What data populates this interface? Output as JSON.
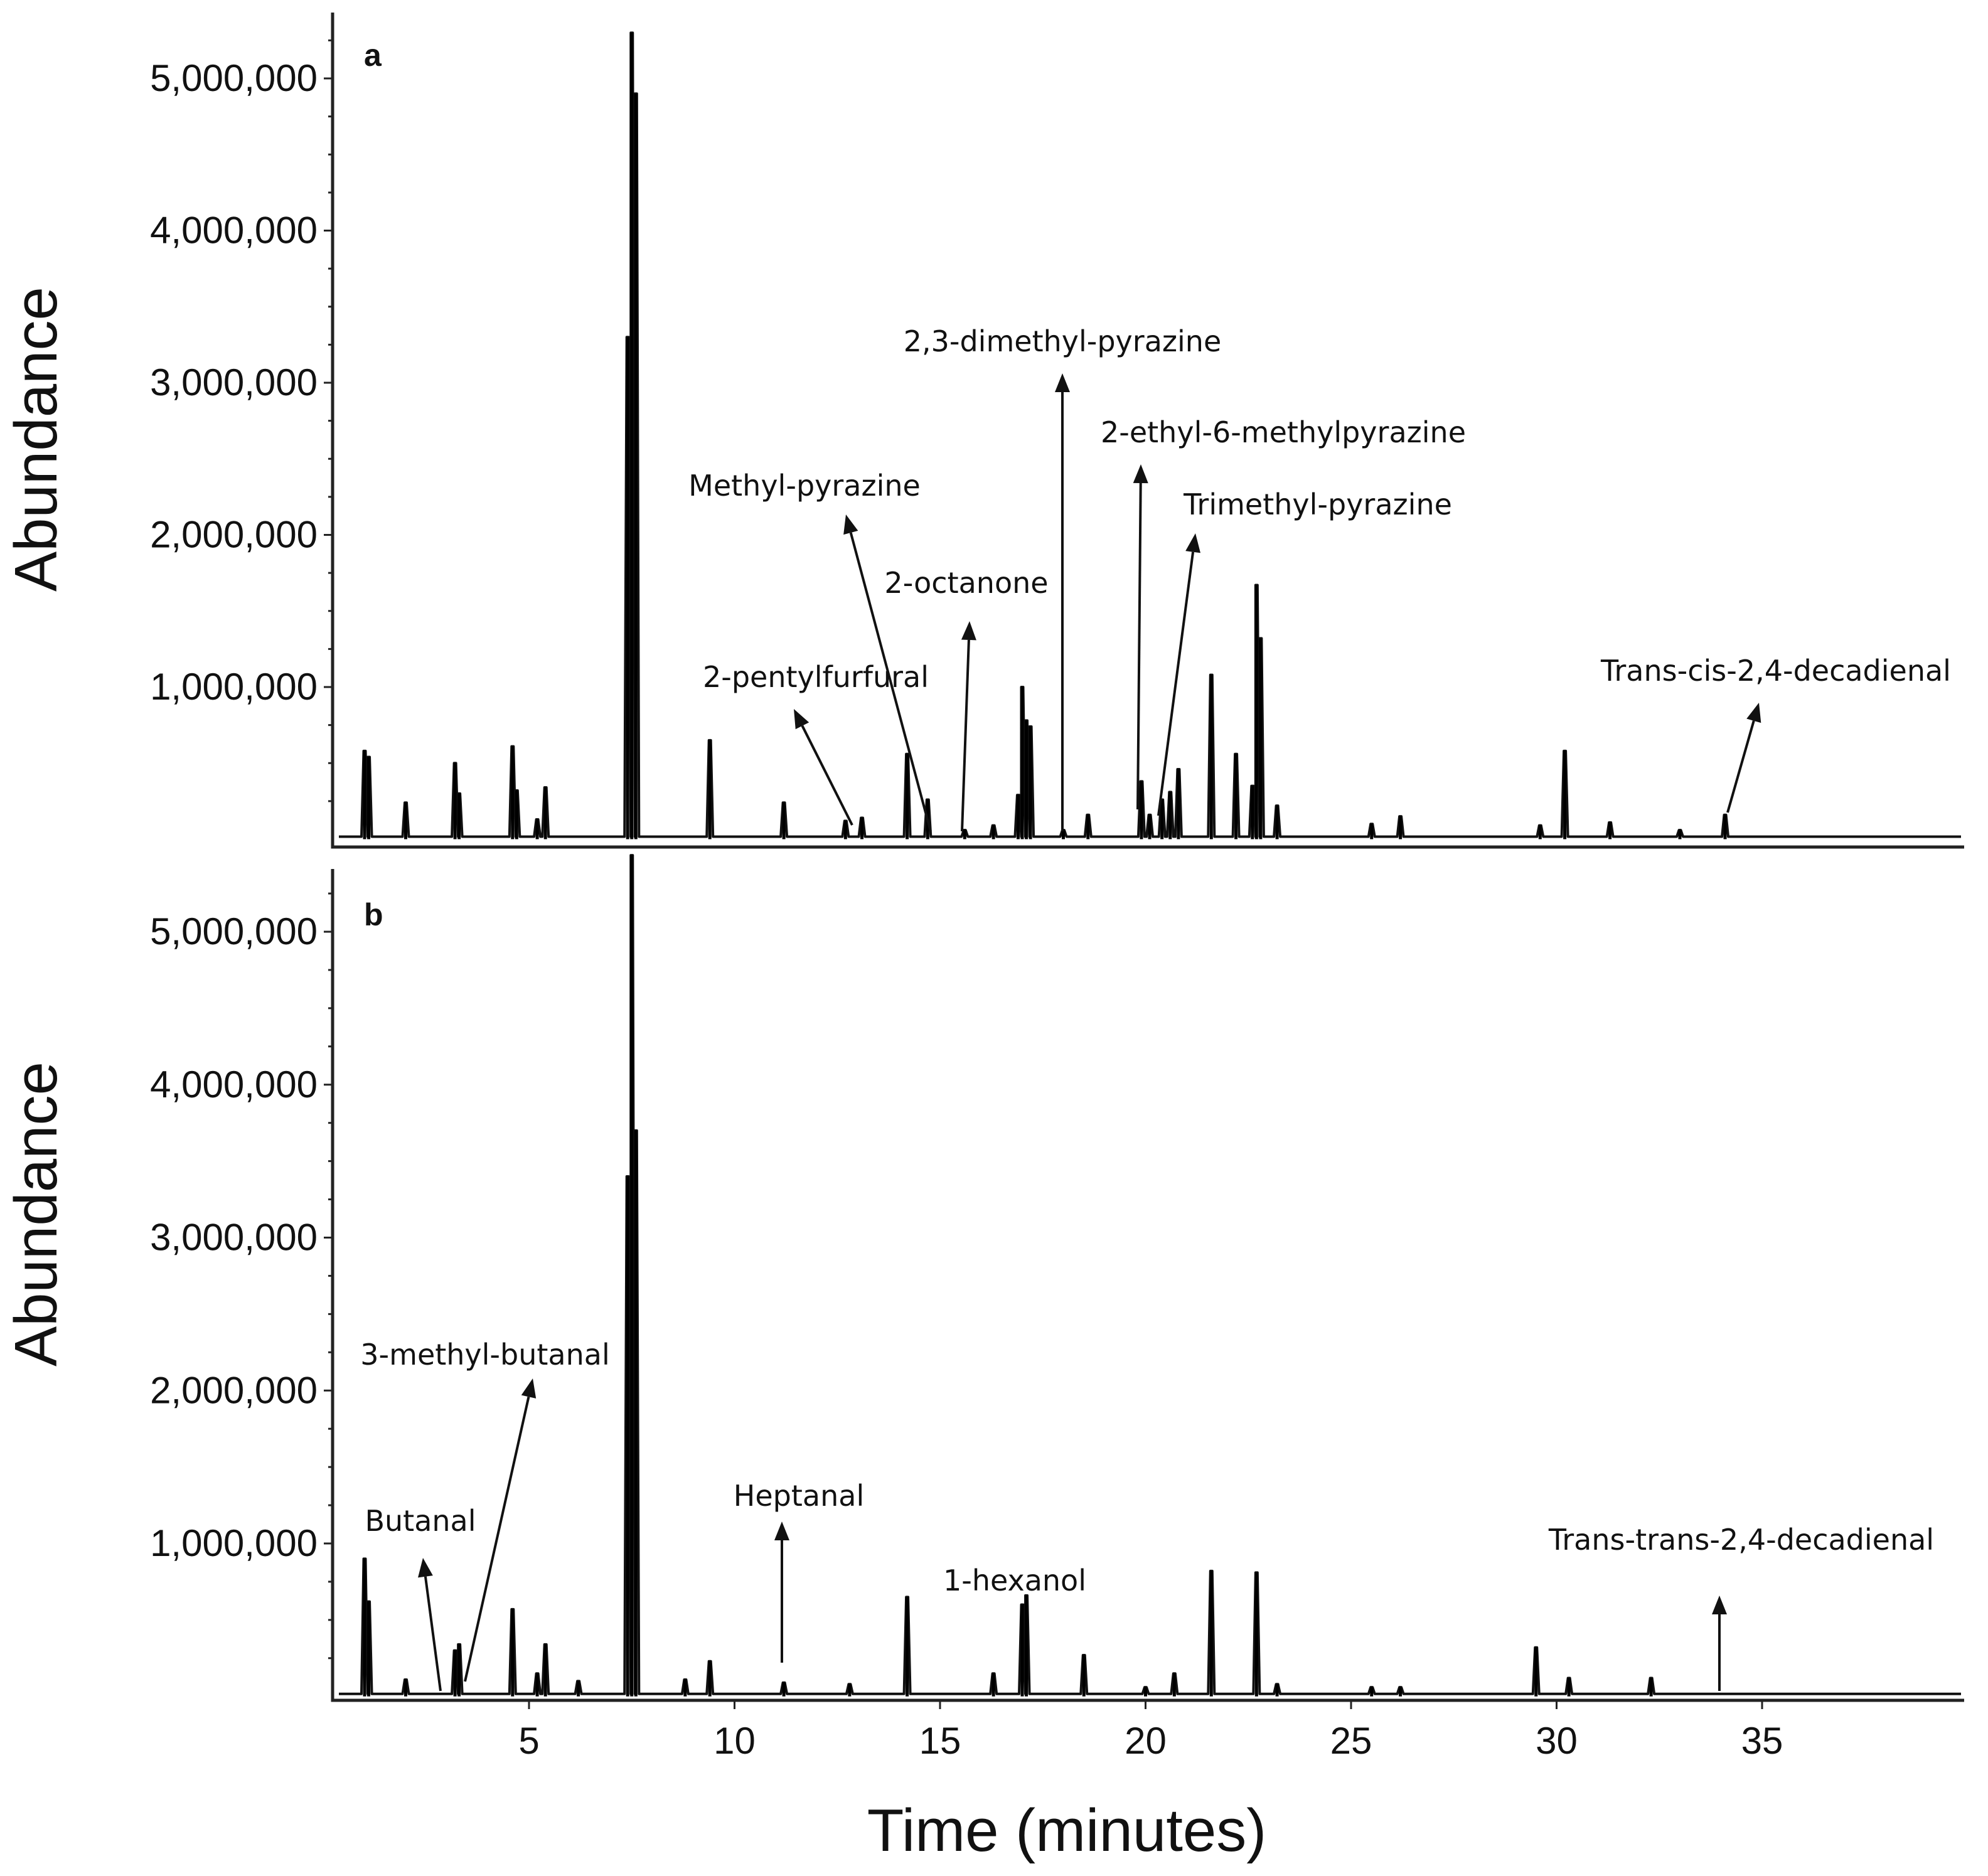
{
  "chart_data": [
    {
      "type": "line",
      "panel": "a",
      "ylabel": "Abundance",
      "xlabel": "",
      "xlim": [
        0,
        40
      ],
      "ylim": [
        0,
        5400000
      ],
      "ytick_labels": [
        "1,000,000",
        "2,000,000",
        "3,000,000",
        "4,000,000",
        "5,000,000"
      ],
      "ytick_values": [
        1000000,
        2000000,
        3000000,
        4000000,
        5000000
      ],
      "peaks": [
        [
          1.0,
          580000
        ],
        [
          1.1,
          540000
        ],
        [
          2.0,
          240000
        ],
        [
          3.2,
          500000
        ],
        [
          3.3,
          300000
        ],
        [
          4.6,
          610000
        ],
        [
          4.7,
          320000
        ],
        [
          5.2,
          130000
        ],
        [
          5.4,
          340000
        ],
        [
          7.4,
          3300000
        ],
        [
          7.5,
          5300000
        ],
        [
          7.6,
          4900000
        ],
        [
          9.4,
          650000
        ],
        [
          11.2,
          240000
        ],
        [
          12.7,
          120000
        ],
        [
          13.1,
          140000
        ],
        [
          14.2,
          560000
        ],
        [
          14.7,
          260000
        ],
        [
          15.6,
          60000
        ],
        [
          16.3,
          90000
        ],
        [
          16.9,
          290000
        ],
        [
          17.0,
          1000000
        ],
        [
          17.1,
          780000
        ],
        [
          17.2,
          740000
        ],
        [
          18.0,
          60000
        ],
        [
          18.6,
          160000
        ],
        [
          19.9,
          380000
        ],
        [
          20.1,
          160000
        ],
        [
          20.4,
          260000
        ],
        [
          20.6,
          310000
        ],
        [
          20.8,
          460000
        ],
        [
          21.6,
          1080000
        ],
        [
          22.2,
          560000
        ],
        [
          22.6,
          350000
        ],
        [
          22.7,
          1670000
        ],
        [
          22.8,
          1320000
        ],
        [
          23.2,
          220000
        ],
        [
          25.5,
          100000
        ],
        [
          26.2,
          150000
        ],
        [
          29.6,
          90000
        ],
        [
          30.2,
          580000
        ],
        [
          31.3,
          110000
        ],
        [
          33.0,
          60000
        ],
        [
          34.1,
          160000
        ]
      ],
      "annotations": [
        {
          "label": "2-pentylfurfural",
          "x": 13.0
        },
        {
          "label": "Methyl-pyrazine",
          "x": 14.6
        },
        {
          "label": "2-octanone",
          "x": 15.6
        },
        {
          "label": "2,3-dimethyl-pyrazine",
          "x": 18.0
        },
        {
          "label": "2-ethyl-6-methylpyrazine",
          "x": 19.9
        },
        {
          "label": "Trimethyl-pyrazine",
          "x": 20.5
        },
        {
          "label": "Trans-cis-2,4-decadienal",
          "x": 34.1
        }
      ]
    },
    {
      "type": "line",
      "panel": "b",
      "ylabel": "Abundance",
      "xlabel": "Time (minutes)",
      "xlim": [
        0,
        40
      ],
      "ylim": [
        0,
        5400000
      ],
      "ytick_labels": [
        "1,000,000",
        "2,000,000",
        "3,000,000",
        "4,000,000",
        "5,000,000"
      ],
      "ytick_values": [
        1000000,
        2000000,
        3000000,
        4000000,
        5000000
      ],
      "xtick_labels": [
        "5",
        "10",
        "15",
        "20",
        "25",
        "30",
        "35"
      ],
      "xtick_values": [
        5,
        10,
        15,
        20,
        25,
        30,
        35
      ],
      "peaks": [
        [
          1.0,
          900000
        ],
        [
          1.1,
          620000
        ],
        [
          2.0,
          110000
        ],
        [
          3.2,
          300000
        ],
        [
          3.3,
          340000
        ],
        [
          4.6,
          570000
        ],
        [
          5.2,
          150000
        ],
        [
          5.4,
          340000
        ],
        [
          6.2,
          100000
        ],
        [
          7.4,
          3400000
        ],
        [
          7.5,
          5500000
        ],
        [
          7.6,
          3700000
        ],
        [
          8.8,
          110000
        ],
        [
          9.4,
          230000
        ],
        [
          11.2,
          90000
        ],
        [
          12.8,
          80000
        ],
        [
          14.2,
          650000
        ],
        [
          16.3,
          150000
        ],
        [
          17.0,
          600000
        ],
        [
          17.1,
          660000
        ],
        [
          18.5,
          270000
        ],
        [
          20.0,
          60000
        ],
        [
          20.7,
          150000
        ],
        [
          21.6,
          820000
        ],
        [
          22.7,
          810000
        ],
        [
          23.2,
          80000
        ],
        [
          25.5,
          60000
        ],
        [
          26.2,
          60000
        ],
        [
          29.5,
          320000
        ],
        [
          30.3,
          120000
        ],
        [
          32.3,
          120000
        ]
      ],
      "annotations": [
        {
          "label": "Butanal",
          "x": 2.6
        },
        {
          "label": "3-methyl-butanal",
          "x": 3.3
        },
        {
          "label": "Heptanal",
          "x": 11.2
        },
        {
          "label": "1-hexanol",
          "x": 17.0
        },
        {
          "label": "Trans-trans-2,4-decadienal",
          "x": 34.0
        }
      ]
    }
  ],
  "panels": {
    "a": {
      "letter": "a",
      "ylabel": "Abundance"
    },
    "b": {
      "letter": "b",
      "ylabel": "Abundance",
      "xlabel": "Time (minutes)"
    }
  }
}
